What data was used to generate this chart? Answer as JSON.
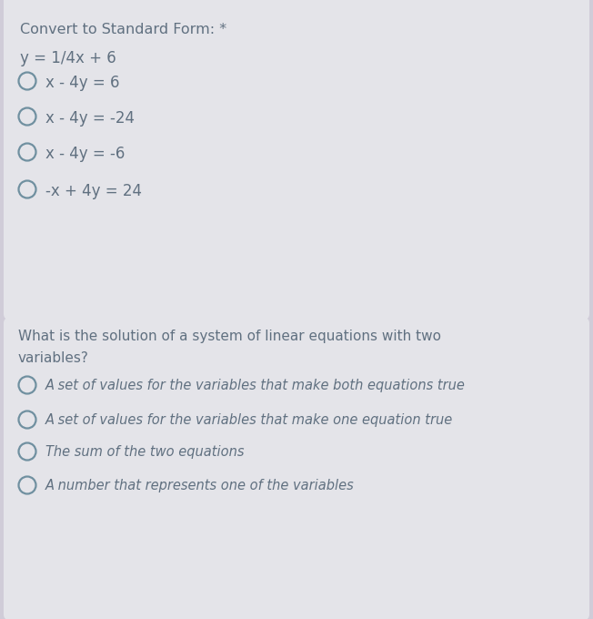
{
  "bg_color": "#e4e4e9",
  "divider_color": "#c0b8d0",
  "outer_bg": "#d0ccd8",
  "text_color": "#607080",
  "circle_edge_color": "#7090a0",
  "q1_title": "Convert to Standard Form: *",
  "q1_equation": "y = 1/4x + 6",
  "q1_options": [
    "x - 4y = 6",
    "x - 4y = -24",
    "x - 4y = -6",
    "-x + 4y = 24"
  ],
  "q2_title_line1": "What is the solution of a system of linear equations with two",
  "q2_title_line2": "variables?",
  "q2_options": [
    "A set of values for the variables that make both equations true",
    "A set of values for the variables that make one equation true",
    "The sum of the two equations",
    "A number that represents one of the variables"
  ],
  "fig_width": 6.52,
  "fig_height": 6.8,
  "dpi": 100
}
